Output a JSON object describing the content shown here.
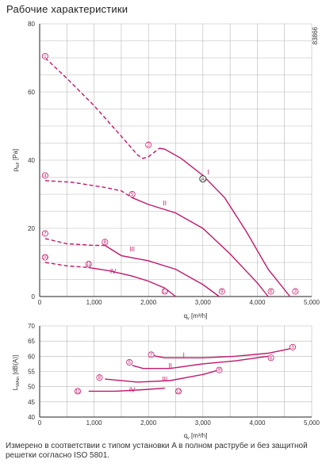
{
  "title": "Рабочие характеристики",
  "code": "83866",
  "footnote": "Измерено в соответствии с типом установки A в полном раструбе и без защитной решетки согласно ISO 5801.",
  "colors": {
    "curve": "#c2186b",
    "grid": "#b8b8b8",
    "axis": "#222222"
  },
  "chart_data": [
    {
      "type": "line",
      "xlabel": "qv [m³/h]",
      "ylabel": "pfsF [Pa]",
      "xlim": [
        0,
        5000
      ],
      "ylim": [
        0,
        80
      ],
      "xticks": [
        "0",
        "1,000",
        "2,000",
        "3,000",
        "4,000",
        "5,000"
      ],
      "yticks": [
        "0",
        "20",
        "40",
        "60",
        "80"
      ],
      "grid": true,
      "series": [
        {
          "name": "I",
          "dashed": [
            [
              100,
              70
            ],
            [
              500,
              64
            ],
            [
              1000,
              56
            ],
            [
              1500,
              47
            ],
            [
              1800,
              41.5
            ],
            [
              1900,
              40.5
            ],
            [
              2000,
              41
            ],
            [
              2200,
              43.5
            ]
          ],
          "solid": [
            [
              2200,
              43.5
            ],
            [
              2300,
              43.2
            ],
            [
              2600,
              40.5
            ],
            [
              3000,
              35.5
            ],
            [
              3400,
              29
            ],
            [
              3800,
              19
            ],
            [
              4200,
              8
            ],
            [
              4600,
              0
            ]
          ]
        },
        {
          "name": "II",
          "dashed": [
            [
              100,
              34
            ],
            [
              600,
              33.5
            ],
            [
              1200,
              32
            ],
            [
              1500,
              31
            ],
            [
              1700,
              29
            ]
          ],
          "solid": [
            [
              1700,
              29
            ],
            [
              2000,
              27
            ],
            [
              2500,
              24.5
            ],
            [
              3000,
              20
            ],
            [
              3500,
              12.5
            ],
            [
              4000,
              4
            ],
            [
              4200,
              0
            ]
          ]
        },
        {
          "name": "III",
          "dashed": [
            [
              100,
              17
            ],
            [
              500,
              15.5
            ],
            [
              1000,
              15
            ],
            [
              1200,
              15
            ]
          ],
          "solid": [
            [
              1200,
              15
            ],
            [
              1500,
              12
            ],
            [
              2000,
              10.5
            ],
            [
              2500,
              8
            ],
            [
              3000,
              3.5
            ],
            [
              3300,
              0
            ]
          ]
        },
        {
          "name": "IV",
          "dashed": [
            [
              100,
              10
            ],
            [
              500,
              9
            ],
            [
              900,
              8.5
            ]
          ],
          "solid": [
            [
              900,
              8.5
            ],
            [
              1300,
              7.5
            ],
            [
              1700,
              6
            ],
            [
              2000,
              4.5
            ],
            [
              2300,
              2.5
            ],
            [
              2500,
              0
            ]
          ]
        }
      ],
      "point_markers": [
        {
          "label": "1",
          "x": 100,
          "y": 70.5
        },
        {
          "label": "2",
          "x": 2000,
          "y": 44.5
        },
        {
          "label": "3",
          "x": 4700,
          "y": 1.5
        },
        {
          "label": "4",
          "x": 100,
          "y": 35.5
        },
        {
          "label": "5",
          "x": 1700,
          "y": 30
        },
        {
          "label": "6",
          "x": 4250,
          "y": 1.5
        },
        {
          "label": "7",
          "x": 100,
          "y": 18.5
        },
        {
          "label": "8",
          "x": 1200,
          "y": 16
        },
        {
          "label": "9",
          "x": 3350,
          "y": 1.5
        },
        {
          "label": "10",
          "x": 100,
          "y": 11.5
        },
        {
          "label": "11",
          "x": 900,
          "y": 9.5
        },
        {
          "label": "12",
          "x": 2300,
          "y": 1.5
        }
      ],
      "curve_labels": [
        {
          "label": "I",
          "x": 3100,
          "y": 36.5
        },
        {
          "label": "II",
          "x": 2300,
          "y": 27.5
        },
        {
          "label": "III",
          "x": 1700,
          "y": 14
        },
        {
          "label": "IV",
          "x": 1350,
          "y": 7.5
        }
      ],
      "operating_point": {
        "label": "A",
        "x": 3000,
        "y": 34.5
      }
    },
    {
      "type": "line",
      "xlabel": "qv [m³/h]",
      "ylabel": "LwAin [dB(A)]",
      "xlim": [
        0,
        5000
      ],
      "ylim": [
        40,
        70
      ],
      "xticks": [
        "0",
        "1,000",
        "2,000",
        "3,000",
        "4,000",
        "5,000"
      ],
      "yticks": [
        "40",
        "45",
        "50",
        "55",
        "60",
        "65",
        "70"
      ],
      "grid": true,
      "series": [
        {
          "name": "I",
          "solid": [
            [
              2000,
              60.5
            ],
            [
              2300,
              59.5
            ],
            [
              3000,
              59.5
            ],
            [
              3600,
              60
            ],
            [
              4200,
              61
            ],
            [
              4600,
              62.5
            ]
          ]
        },
        {
          "name": "II",
          "solid": [
            [
              1700,
              57
            ],
            [
              1900,
              56
            ],
            [
              2400,
              56
            ],
            [
              3000,
              57.5
            ],
            [
              3600,
              58.5
            ],
            [
              4200,
              60
            ]
          ]
        },
        {
          "name": "III",
          "solid": [
            [
              1200,
              52.5
            ],
            [
              1800,
              51.5
            ],
            [
              2400,
              52
            ],
            [
              3000,
              54
            ],
            [
              3300,
              55.5
            ]
          ]
        },
        {
          "name": "IV",
          "solid": [
            [
              900,
              48.5
            ],
            [
              1400,
              48.5
            ],
            [
              1900,
              49
            ],
            [
              2300,
              49.5
            ]
          ]
        }
      ],
      "point_markers": [
        {
          "label": "2",
          "x": 2050,
          "y": 60.5
        },
        {
          "label": "3",
          "x": 4650,
          "y": 63
        },
        {
          "label": "5",
          "x": 1650,
          "y": 58
        },
        {
          "label": "6",
          "x": 4250,
          "y": 59.5
        },
        {
          "label": "8",
          "x": 1100,
          "y": 53
        },
        {
          "label": "9",
          "x": 3300,
          "y": 55.5
        },
        {
          "label": "11",
          "x": 700,
          "y": 48.5
        },
        {
          "label": "12",
          "x": 2550,
          "y": 48.5
        }
      ],
      "curve_labels": [
        {
          "label": "I",
          "x": 2650,
          "y": 60.5
        },
        {
          "label": "II",
          "x": 2400,
          "y": 57
        },
        {
          "label": "III",
          "x": 2300,
          "y": 52.5
        },
        {
          "label": "IV",
          "x": 1700,
          "y": 49
        }
      ]
    }
  ]
}
